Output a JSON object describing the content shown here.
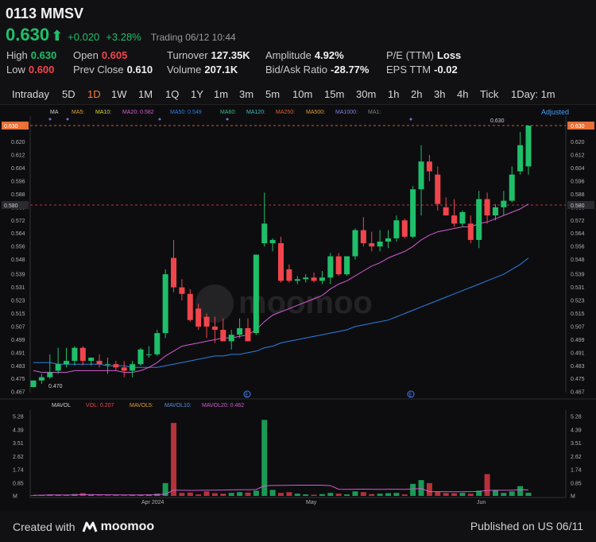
{
  "header": {
    "ticker": "0113 MMSV",
    "price": "0.630",
    "change": "+0.020",
    "change_pct": "+3.28%",
    "status": "Trading 06/12 10:44"
  },
  "stats": {
    "high_label": "High",
    "high": "0.630",
    "low_label": "Low",
    "low": "0.600",
    "open_label": "Open",
    "open": "0.605",
    "prev_close_label": "Prev Close",
    "prev_close": "0.610",
    "turnover_label": "Turnover",
    "turnover": "127.35K",
    "volume_label": "Volume",
    "volume": "207.1K",
    "amplitude_label": "Amplitude",
    "amplitude": "4.92%",
    "bidask_label": "Bid/Ask Ratio",
    "bidask": "-28.77%",
    "pe_label": "P/E (TTM)",
    "pe": "Loss",
    "eps_label": "EPS TTM",
    "eps": "-0.02"
  },
  "tabs": [
    "Intraday",
    "5D",
    "1D",
    "1W",
    "1M",
    "1Q",
    "1Y",
    "1m",
    "3m",
    "5m",
    "10m",
    "15m",
    "30m",
    "1h",
    "2h",
    "3h",
    "4h",
    "Tick",
    "1Day: 1m"
  ],
  "active_tab": "1D",
  "ma_legend": {
    "ma": "MA",
    "ma5": "MA5:",
    "ma10": "MA10:",
    "ma20": "MA20: 0.582",
    "ma50": "MA50: 0.549",
    "ma60": "MA60:",
    "ma120": "MA120:",
    "ma250": "MA250:",
    "ma500": "MA500:",
    "ma1000": "MA1000:",
    "ma_tail": "MA1:",
    "adjusted": "Adjusted"
  },
  "vol_legend": {
    "mavol": "MAVOL",
    "vol": "VOL: 0.207",
    "mavol5": "MAVOL5:",
    "mavol10": "MAVOL10:",
    "mavol20": "MAVOL20: 0.462"
  },
  "colors": {
    "up": "#1fbf6a",
    "down": "#f0454b",
    "ma20": "#d45bd1",
    "ma50": "#2f7fe0",
    "accent": "#ff7a3a"
  },
  "chart_data": {
    "type": "candlestick",
    "price_ticks": [
      "0.630",
      "0.620",
      "0.612",
      "0.604",
      "0.596",
      "0.588",
      "0.580",
      "0.572",
      "0.564",
      "0.556",
      "0.548",
      "0.539",
      "0.531",
      "0.523",
      "0.515",
      "0.507",
      "0.499",
      "0.491",
      "0.483",
      "0.475",
      "0.467"
    ],
    "ylim": [
      0.464,
      0.632
    ],
    "high_label": "0.630",
    "low_label": "0.470",
    "last_price_tag": "0.630",
    "ref_price_tag": "0.580",
    "x_labels": [
      "Apr 2024",
      "May",
      "Jun"
    ],
    "vol_ticks": [
      "5.28",
      "4.39",
      "3.51",
      "2.62",
      "1.74",
      "0.85",
      "M"
    ],
    "candles": [
      {
        "o": 0.47,
        "h": 0.474,
        "l": 0.47,
        "c": 0.474
      },
      {
        "o": 0.474,
        "h": 0.478,
        "l": 0.472,
        "c": 0.476
      },
      {
        "o": 0.476,
        "h": 0.49,
        "l": 0.475,
        "c": 0.479
      },
      {
        "o": 0.48,
        "h": 0.494,
        "l": 0.478,
        "c": 0.484
      },
      {
        "o": 0.484,
        "h": 0.494,
        "l": 0.482,
        "c": 0.486
      },
      {
        "o": 0.486,
        "h": 0.495,
        "l": 0.483,
        "c": 0.494
      },
      {
        "o": 0.494,
        "h": 0.495,
        "l": 0.483,
        "c": 0.486
      },
      {
        "o": 0.486,
        "h": 0.488,
        "l": 0.483,
        "c": 0.488
      },
      {
        "o": 0.486,
        "h": 0.49,
        "l": 0.482,
        "c": 0.484
      },
      {
        "o": 0.484,
        "h": 0.488,
        "l": 0.478,
        "c": 0.484
      },
      {
        "o": 0.484,
        "h": 0.486,
        "l": 0.48,
        "c": 0.482
      },
      {
        "o": 0.482,
        "h": 0.486,
        "l": 0.476,
        "c": 0.48
      },
      {
        "o": 0.48,
        "h": 0.486,
        "l": 0.476,
        "c": 0.484
      },
      {
        "o": 0.484,
        "h": 0.494,
        "l": 0.483,
        "c": 0.493
      },
      {
        "o": 0.49,
        "h": 0.495,
        "l": 0.488,
        "c": 0.49
      },
      {
        "o": 0.49,
        "h": 0.505,
        "l": 0.489,
        "c": 0.503
      },
      {
        "o": 0.503,
        "h": 0.542,
        "l": 0.5,
        "c": 0.539
      },
      {
        "o": 0.549,
        "h": 0.56,
        "l": 0.528,
        "c": 0.531
      },
      {
        "o": 0.531,
        "h": 0.536,
        "l": 0.523,
        "c": 0.527
      },
      {
        "o": 0.527,
        "h": 0.53,
        "l": 0.51,
        "c": 0.511
      },
      {
        "o": 0.518,
        "h": 0.521,
        "l": 0.505,
        "c": 0.507
      },
      {
        "o": 0.513,
        "h": 0.515,
        "l": 0.5,
        "c": 0.507
      },
      {
        "o": 0.507,
        "h": 0.513,
        "l": 0.497,
        "c": 0.505
      },
      {
        "o": 0.505,
        "h": 0.512,
        "l": 0.498,
        "c": 0.498
      },
      {
        "o": 0.498,
        "h": 0.505,
        "l": 0.493,
        "c": 0.502
      },
      {
        "o": 0.502,
        "h": 0.512,
        "l": 0.5,
        "c": 0.506
      },
      {
        "o": 0.506,
        "h": 0.512,
        "l": 0.498,
        "c": 0.498
      },
      {
        "o": 0.503,
        "h": 0.551,
        "l": 0.502,
        "c": 0.551
      },
      {
        "o": 0.558,
        "h": 0.589,
        "l": 0.556,
        "c": 0.57
      },
      {
        "o": 0.558,
        "h": 0.561,
        "l": 0.553,
        "c": 0.56
      },
      {
        "o": 0.558,
        "h": 0.562,
        "l": 0.534,
        "c": 0.535
      },
      {
        "o": 0.542,
        "h": 0.545,
        "l": 0.534,
        "c": 0.535
      },
      {
        "o": 0.535,
        "h": 0.538,
        "l": 0.533,
        "c": 0.536
      },
      {
        "o": 0.536,
        "h": 0.539,
        "l": 0.534,
        "c": 0.537
      },
      {
        "o": 0.537,
        "h": 0.54,
        "l": 0.534,
        "c": 0.535
      },
      {
        "o": 0.535,
        "h": 0.541,
        "l": 0.533,
        "c": 0.537
      },
      {
        "o": 0.537,
        "h": 0.552,
        "l": 0.533,
        "c": 0.55
      },
      {
        "o": 0.55,
        "h": 0.552,
        "l": 0.538,
        "c": 0.539
      },
      {
        "o": 0.539,
        "h": 0.55,
        "l": 0.538,
        "c": 0.55
      },
      {
        "o": 0.55,
        "h": 0.567,
        "l": 0.548,
        "c": 0.566
      },
      {
        "o": 0.566,
        "h": 0.574,
        "l": 0.556,
        "c": 0.558
      },
      {
        "o": 0.558,
        "h": 0.565,
        "l": 0.553,
        "c": 0.556
      },
      {
        "o": 0.556,
        "h": 0.566,
        "l": 0.553,
        "c": 0.559
      },
      {
        "o": 0.559,
        "h": 0.566,
        "l": 0.555,
        "c": 0.561
      },
      {
        "o": 0.561,
        "h": 0.575,
        "l": 0.559,
        "c": 0.572
      },
      {
        "o": 0.572,
        "h": 0.573,
        "l": 0.561,
        "c": 0.562
      },
      {
        "o": 0.562,
        "h": 0.593,
        "l": 0.561,
        "c": 0.591
      },
      {
        "o": 0.591,
        "h": 0.618,
        "l": 0.575,
        "c": 0.608
      },
      {
        "o": 0.608,
        "h": 0.612,
        "l": 0.596,
        "c": 0.602
      },
      {
        "o": 0.6,
        "h": 0.605,
        "l": 0.578,
        "c": 0.582
      },
      {
        "o": 0.58,
        "h": 0.586,
        "l": 0.575,
        "c": 0.575
      },
      {
        "o": 0.575,
        "h": 0.585,
        "l": 0.568,
        "c": 0.57
      },
      {
        "o": 0.57,
        "h": 0.578,
        "l": 0.568,
        "c": 0.577
      },
      {
        "o": 0.57,
        "h": 0.575,
        "l": 0.558,
        "c": 0.56
      },
      {
        "o": 0.56,
        "h": 0.59,
        "l": 0.555,
        "c": 0.585
      },
      {
        "o": 0.585,
        "h": 0.589,
        "l": 0.57,
        "c": 0.575
      },
      {
        "o": 0.575,
        "h": 0.582,
        "l": 0.572,
        "c": 0.58
      },
      {
        "o": 0.58,
        "h": 0.59,
        "l": 0.575,
        "c": 0.584
      },
      {
        "o": 0.584,
        "h": 0.605,
        "l": 0.583,
        "c": 0.6
      },
      {
        "o": 0.602,
        "h": 0.626,
        "l": 0.6,
        "c": 0.618
      },
      {
        "o": 0.605,
        "h": 0.63,
        "l": 0.6,
        "c": 0.63
      }
    ],
    "volumes": [
      0.05,
      0.05,
      0.09,
      0.06,
      0.04,
      0.12,
      0.18,
      0.08,
      0.04,
      0.03,
      0.05,
      0.04,
      0.06,
      0.08,
      0.1,
      0.15,
      0.85,
      4.85,
      0.2,
      0.22,
      0.1,
      0.3,
      0.18,
      0.15,
      0.2,
      0.25,
      0.22,
      0.35,
      5.05,
      0.4,
      0.2,
      0.25,
      0.15,
      0.1,
      0.08,
      0.12,
      0.2,
      0.15,
      0.1,
      0.3,
      0.25,
      0.12,
      0.15,
      0.18,
      0.2,
      0.1,
      0.8,
      1.05,
      0.85,
      0.3,
      0.2,
      0.18,
      0.2,
      0.15,
      0.35,
      1.45,
      0.4,
      0.2,
      0.3,
      0.65,
      0.21
    ],
    "ma20": [
      0.48,
      0.479,
      0.479,
      0.479,
      0.479,
      0.48,
      0.48,
      0.48,
      0.48,
      0.48,
      0.48,
      0.479,
      0.479,
      0.48,
      0.482,
      0.485,
      0.489,
      0.492,
      0.495,
      0.496,
      0.497,
      0.498,
      0.499,
      0.5,
      0.5,
      0.501,
      0.502,
      0.505,
      0.51,
      0.514,
      0.516,
      0.518,
      0.52,
      0.522,
      0.524,
      0.526,
      0.53,
      0.533,
      0.535,
      0.538,
      0.541,
      0.544,
      0.546,
      0.549,
      0.551,
      0.553,
      0.556,
      0.56,
      0.563,
      0.565,
      0.566,
      0.567,
      0.568,
      0.568,
      0.57,
      0.571,
      0.573,
      0.575,
      0.577,
      0.579,
      0.582
    ],
    "ma50": [
      0.485,
      0.485,
      0.485,
      0.484,
      0.484,
      0.484,
      0.484,
      0.484,
      0.484,
      0.483,
      0.483,
      0.483,
      0.482,
      0.482,
      0.482,
      0.482,
      0.483,
      0.484,
      0.485,
      0.486,
      0.487,
      0.488,
      0.489,
      0.489,
      0.49,
      0.49,
      0.491,
      0.492,
      0.494,
      0.495,
      0.497,
      0.498,
      0.499,
      0.5,
      0.501,
      0.502,
      0.503,
      0.504,
      0.505,
      0.507,
      0.508,
      0.509,
      0.51,
      0.511,
      0.513,
      0.515,
      0.517,
      0.519,
      0.521,
      0.523,
      0.525,
      0.527,
      0.529,
      0.531,
      0.533,
      0.535,
      0.537,
      0.539,
      0.542,
      0.545,
      0.549
    ]
  },
  "footer": {
    "created_with": "Created with",
    "brand": "moomoo",
    "published": "Published on US 06/11"
  }
}
